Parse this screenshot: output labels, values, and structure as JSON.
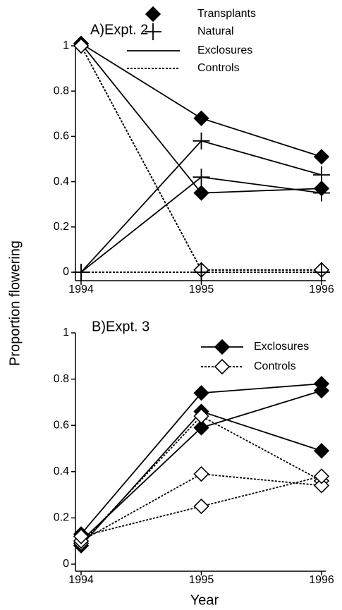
{
  "chart_data": [
    {
      "type": "line",
      "title": "A)Expt. 2",
      "ylabel": "Proportion flowering",
      "categories": [
        "1994",
        "1995",
        "1996"
      ],
      "ylim": [
        0,
        1
      ],
      "yticks": [
        0,
        0.2,
        0.4,
        0.6,
        0.8,
        1
      ],
      "color": "#000000",
      "legend": [
        {
          "label": "Transplants",
          "marker": "filled-diamond"
        },
        {
          "label": "Natural",
          "marker": "plus"
        },
        {
          "label": "Exclosures",
          "line": "solid"
        },
        {
          "label": "Controls",
          "line": "dotted"
        }
      ],
      "series": [
        {
          "marker": "filled-diamond",
          "line": "solid",
          "values": [
            1.01,
            0.68,
            0.51
          ]
        },
        {
          "marker": "filled-diamond",
          "line": "solid",
          "values": [
            1.01,
            0.35,
            0.37
          ]
        },
        {
          "marker": "plus",
          "line": "solid",
          "values": [
            0,
            0.58,
            0.43
          ]
        },
        {
          "marker": "plus",
          "line": "solid",
          "values": [
            0,
            0.42,
            0.35
          ]
        },
        {
          "marker": "open-diamond",
          "line": "dotted",
          "values": [
            1.0,
            0.01,
            0.01
          ]
        },
        {
          "marker": "open-diamond",
          "line": "dotted",
          "values": [
            1.0,
            0.01,
            0.01
          ]
        },
        {
          "marker": "plus",
          "line": "dotted",
          "values": [
            0,
            0,
            0
          ]
        },
        {
          "marker": "plus",
          "line": "dotted",
          "values": [
            0,
            0,
            0
          ]
        }
      ]
    },
    {
      "type": "line",
      "title": "B)Expt. 3",
      "xlabel": "Year",
      "categories": [
        "1994",
        "1995",
        "1996"
      ],
      "ylim": [
        0,
        1
      ],
      "yticks": [
        0,
        0.2,
        0.4,
        0.6,
        0.8,
        1
      ],
      "color": "#000000",
      "legend": [
        {
          "label": "Exclosures",
          "marker": "filled-diamond",
          "line": "solid"
        },
        {
          "label": "Controls",
          "marker": "open-diamond",
          "line": "dotted"
        }
      ],
      "series": [
        {
          "marker": "filled-diamond",
          "line": "solid",
          "values": [
            0.13,
            0.74,
            0.78
          ]
        },
        {
          "marker": "filled-diamond",
          "line": "solid",
          "values": [
            0.1,
            0.59,
            0.75
          ]
        },
        {
          "marker": "filled-diamond",
          "line": "solid",
          "values": [
            0.08,
            0.66,
            0.49
          ]
        },
        {
          "marker": "open-diamond",
          "line": "dotted",
          "values": [
            0.09,
            0.64,
            0.36
          ]
        },
        {
          "marker": "open-diamond",
          "line": "dotted",
          "values": [
            0.1,
            0.39,
            0.34
          ]
        },
        {
          "marker": "open-diamond",
          "line": "dotted",
          "values": [
            0.12,
            0.25,
            0.38
          ]
        }
      ]
    }
  ]
}
